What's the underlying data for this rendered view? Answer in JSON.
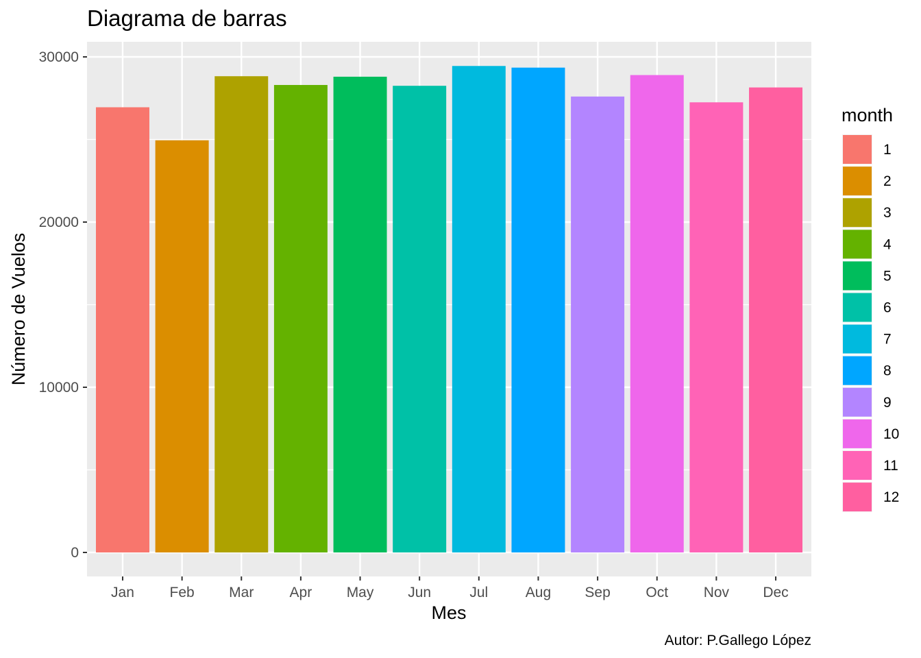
{
  "chart_data": {
    "type": "bar",
    "title": "Diagrama de barras",
    "xlabel": "Mes",
    "ylabel": "Número de Vuelos",
    "caption": "Autor: P.Gallego López",
    "categories": [
      "Jan",
      "Feb",
      "Mar",
      "Apr",
      "May",
      "Jun",
      "Jul",
      "Aug",
      "Sep",
      "Oct",
      "Nov",
      "Dec"
    ],
    "values": [
      26950,
      24950,
      28830,
      28300,
      28800,
      28250,
      29450,
      29350,
      27600,
      28900,
      27250,
      28150
    ],
    "ylim": [
      0,
      30000
    ],
    "yticks": [
      0,
      10000,
      20000,
      30000
    ],
    "ytick_labels": [
      "0",
      "10000",
      "20000",
      "30000"
    ],
    "grid": true,
    "legend": {
      "title": "month",
      "position": "right",
      "labels": [
        "1",
        "2",
        "3",
        "4",
        "5",
        "6",
        "7",
        "8",
        "9",
        "10",
        "11",
        "12"
      ]
    },
    "colors": [
      "#F8766D",
      "#DB8E00",
      "#AEA200",
      "#64B200",
      "#00BD5C",
      "#00C1A7",
      "#00BADE",
      "#00A6FF",
      "#B385FF",
      "#EF67EB",
      "#FF63B6",
      "#FF5FA0"
    ],
    "panel_background": "#EBEBEB"
  }
}
